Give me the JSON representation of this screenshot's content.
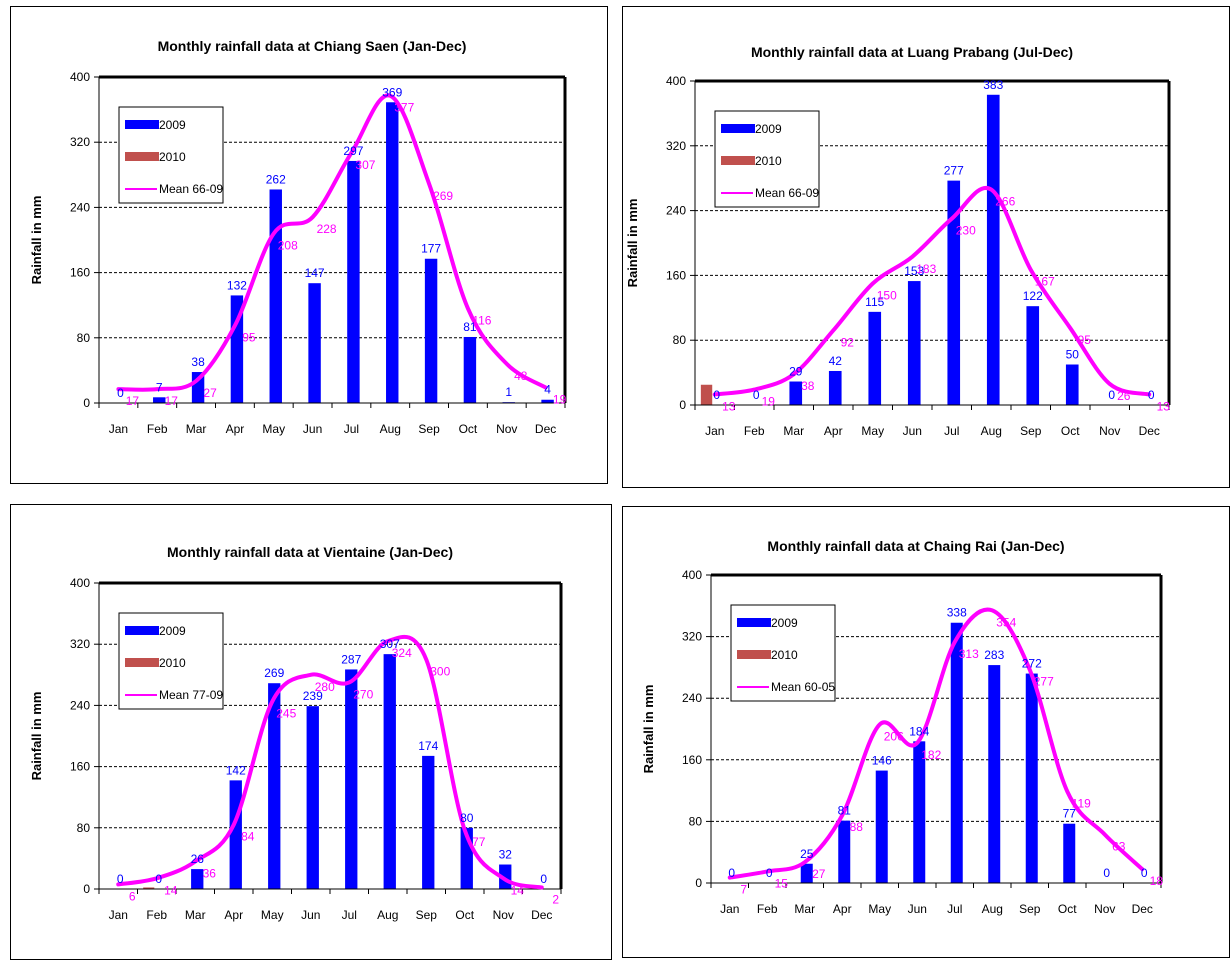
{
  "colors": {
    "bar_2009": "#0000ff",
    "bar_2010": "#c0504d",
    "mean": "#ff00ff",
    "grid": "#000000"
  },
  "chart_data": [
    {
      "type": "bar",
      "title": "Monthly rainfall data at Chiang Saen (Jan-Dec)",
      "xlabel": "",
      "ylabel": "Rainfall in mm",
      "ylim": [
        0,
        400
      ],
      "yticks": [
        "0",
        "80",
        "160",
        "240",
        "320",
        "400"
      ],
      "categories": [
        "Jan",
        "Feb",
        "Mar",
        "Apr",
        "May",
        "Jun",
        "Jul",
        "Aug",
        "Sep",
        "Oct",
        "Nov",
        "Dec"
      ],
      "legend_position": "top-left",
      "grid": "horizontal-dashed",
      "series": [
        {
          "name": "2009",
          "kind": "bar",
          "values": [
            0,
            7,
            38,
            132,
            262,
            147,
            297,
            369,
            177,
            81,
            1,
            4
          ]
        },
        {
          "name": "2010",
          "kind": "bar",
          "values": [
            null,
            null,
            null,
            null,
            null,
            null,
            null,
            null,
            null,
            null,
            null,
            null
          ]
        },
        {
          "name": "Mean 66-09",
          "kind": "line",
          "values": [
            17,
            17,
            27,
            95,
            208,
            228,
            307,
            377,
            269,
            116,
            48,
            19
          ]
        }
      ]
    },
    {
      "type": "bar",
      "title": "Monthly rainfall data at Luang Prabang (Jul-Dec)",
      "xlabel": "",
      "ylabel": "Rainfall in mm",
      "ylim": [
        0,
        400
      ],
      "yticks": [
        "0",
        "80",
        "160",
        "240",
        "320",
        "400"
      ],
      "categories": [
        "Jan",
        "Feb",
        "Mar",
        "Apr",
        "May",
        "Jun",
        "Jul",
        "Aug",
        "Sep",
        "Oct",
        "Nov",
        "Dec"
      ],
      "legend_position": "top-left",
      "grid": "horizontal-dashed",
      "series": [
        {
          "name": "2009",
          "kind": "bar",
          "values": [
            0,
            0,
            29,
            42,
            115,
            153,
            277,
            383,
            122,
            50,
            0,
            0
          ]
        },
        {
          "name": "2010",
          "kind": "bar",
          "values": [
            25,
            null,
            null,
            null,
            null,
            null,
            null,
            null,
            null,
            null,
            null,
            null
          ]
        },
        {
          "name": "Mean 66-09",
          "kind": "line",
          "values": [
            13,
            19,
            38,
            92,
            150,
            183,
            230,
            266,
            167,
            95,
            26,
            13
          ]
        }
      ]
    },
    {
      "type": "bar",
      "title": "Monthly rainfall data at Vientaine (Jan-Dec)",
      "xlabel": "",
      "ylabel": "Rainfall in mm",
      "ylim": [
        0,
        400
      ],
      "yticks": [
        "0",
        "80",
        "160",
        "240",
        "320",
        "400"
      ],
      "categories": [
        "Jan",
        "Feb",
        "Mar",
        "Apr",
        "May",
        "Jun",
        "Jul",
        "Aug",
        "Sep",
        "Oct",
        "Nov",
        "Dec"
      ],
      "legend_position": "top-left",
      "grid": "horizontal-dashed",
      "series": [
        {
          "name": "2009",
          "kind": "bar",
          "values": [
            0,
            0,
            26,
            142,
            269,
            239,
            287,
            307,
            174,
            80,
            32,
            0
          ]
        },
        {
          "name": "2010",
          "kind": "bar",
          "values": [
            null,
            2,
            null,
            null,
            null,
            null,
            null,
            null,
            null,
            null,
            null,
            null
          ]
        },
        {
          "name": "Mean 77-09",
          "kind": "line",
          "values": [
            6,
            14,
            36,
            84,
            245,
            280,
            270,
            324,
            300,
            77,
            14,
            2
          ]
        }
      ]
    },
    {
      "type": "bar",
      "title": "Monthly rainfall data at Chaing Rai (Jan-Dec)",
      "xlabel": "",
      "ylabel": "Rainfall in mm",
      "ylim": [
        0,
        400
      ],
      "yticks": [
        "0",
        "80",
        "160",
        "240",
        "320",
        "400"
      ],
      "categories": [
        "Jan",
        "Feb",
        "Mar",
        "Apr",
        "May",
        "Jun",
        "Jul",
        "Aug",
        "Sep",
        "Oct",
        "Nov",
        "Dec"
      ],
      "legend_position": "top-left",
      "grid": "horizontal-dashed",
      "series": [
        {
          "name": "2009",
          "kind": "bar",
          "values": [
            0,
            0,
            25,
            81,
            146,
            184,
            338,
            283,
            272,
            77,
            0,
            0
          ]
        },
        {
          "name": "2010",
          "kind": "bar",
          "values": [
            null,
            null,
            null,
            null,
            null,
            null,
            null,
            null,
            null,
            null,
            null,
            null
          ]
        },
        {
          "name": "Mean 60-05",
          "kind": "line",
          "values": [
            7,
            15,
            27,
            88,
            206,
            182,
            313,
            354,
            277,
            119,
            63,
            18
          ]
        }
      ]
    }
  ]
}
